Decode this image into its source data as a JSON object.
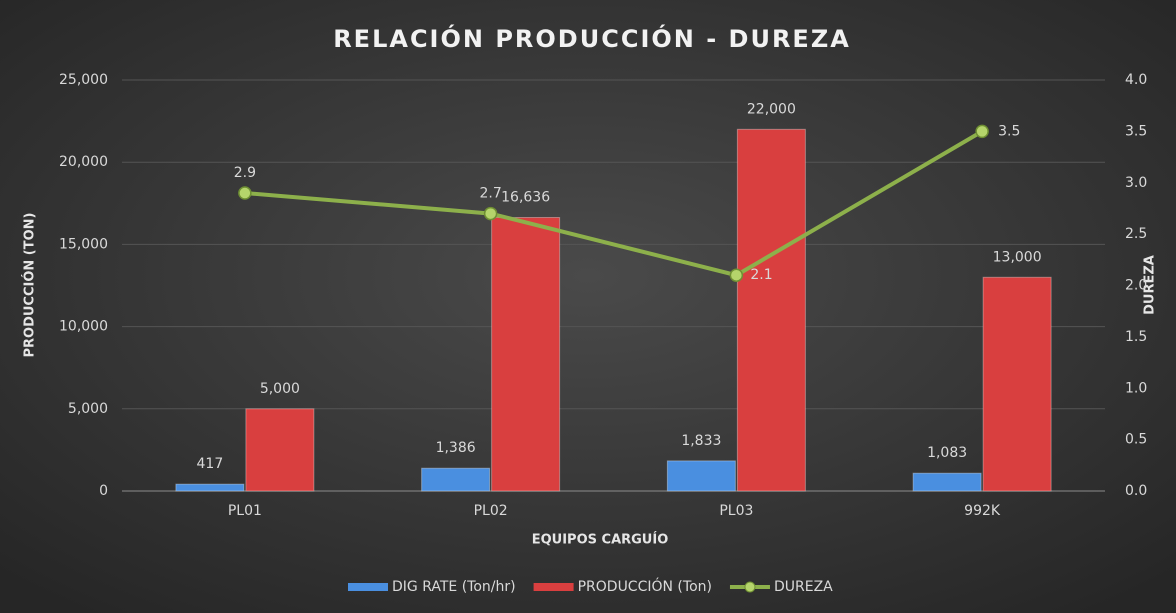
{
  "chart_data": {
    "type": "bar-line",
    "title": "RELACIÓN PRODUCCIÓN - DUREZA",
    "x_label": "EQUIPOS CARGUÍO",
    "y_label": "PRODUCCIÓN (TON)",
    "y2_label": "DUREZA",
    "categories": [
      "PL01",
      "PL02",
      "PL03",
      "992K"
    ],
    "series": [
      {
        "name": "DIG RATE (Ton/hr)",
        "type": "bar",
        "color": "#4a8fe0",
        "values": [
          417,
          1386,
          1833,
          1083
        ],
        "value_labels": [
          "417",
          "1,386",
          "1,833",
          "1,083"
        ]
      },
      {
        "name": "PRODUCCIÓN (Ton)",
        "type": "bar",
        "color": "#d93f3f",
        "values": [
          5000,
          16636,
          22000,
          13000
        ],
        "value_labels": [
          "5,000",
          "16,636",
          "22,000",
          "13,000"
        ]
      },
      {
        "name": "DUREZA",
        "type": "line",
        "axis": "y2",
        "color": "#8db04b",
        "values": [
          2.9,
          2.7,
          2.1,
          3.5
        ]
      }
    ],
    "ylim": [
      0,
      25000
    ],
    "yticks": [
      0,
      {
        "value": 5000,
        "label": "5,000"
      },
      {
        "value": 10000,
        "label": "10,000"
      },
      {
        "value": 15000,
        "label": "15,000"
      },
      {
        "value": 20000,
        "label": "20,000"
      },
      {
        "value": 25000,
        "label": "25,000"
      }
    ],
    "y2lim": [
      0,
      4
    ],
    "y2ticks": [
      {
        "value": 0,
        "label": "0.0"
      },
      0.5,
      {
        "value": 1,
        "label": "1.0"
      },
      1.5,
      {
        "value": 2,
        "label": "2.0"
      },
      2.5,
      {
        "value": 3,
        "label": "3.0"
      },
      3.5,
      {
        "value": 4,
        "label": "4.0"
      }
    ],
    "grid": true,
    "legend": "bottom"
  }
}
